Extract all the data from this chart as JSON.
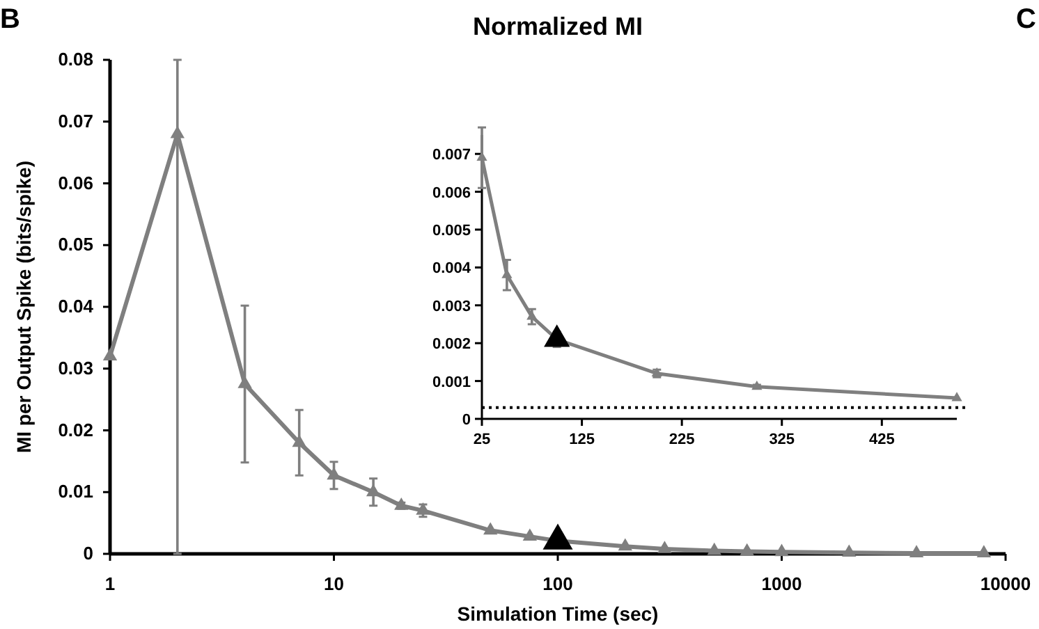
{
  "chart_data": [
    {
      "type": "line",
      "title": "Normalized MI",
      "xlabel": "Simulation Time (sec)",
      "ylabel": "MI per Output Spike (bits/spike)",
      "annotations": [
        "B",
        "C"
      ],
      "x": [
        1,
        2,
        4,
        7,
        10,
        15,
        20,
        25,
        50,
        75,
        100,
        200,
        300,
        500,
        700,
        1000,
        2000,
        4000,
        8000
      ],
      "series": [
        {
          "color": "#7f7f7f",
          "colors": [
            "#7f7f7f",
            "#7f7f7f",
            "#7f7f7f",
            "#7f7f7f",
            "#7f7f7f",
            "#7f7f7f",
            "#7f7f7f",
            "#7f7f7f",
            "#7f7f7f",
            "#7f7f7f",
            "#000000",
            "#7f7f7f",
            "#7f7f7f",
            "#7f7f7f",
            "#7f7f7f",
            "#7f7f7f",
            "#7f7f7f",
            "#7f7f7f",
            "#7f7f7f"
          ],
          "values": [
            0.032,
            0.068,
            0.0275,
            0.018,
            0.0127,
            0.01,
            0.0078,
            0.007,
            0.0038,
            0.0028,
            0.0021,
            0.0012,
            0.0008,
            0.0005,
            0.0004,
            0.0003,
            0.0002,
            0.0001,
            0.0001
          ],
          "errors": [
            null,
            [
              0,
              0.08
            ],
            0.0127,
            0.0053,
            0.0022,
            0.0022,
            0.0005,
            0.001,
            null,
            null,
            null,
            null,
            null,
            null,
            null,
            null,
            null,
            null,
            null
          ]
        }
      ],
      "log": "x",
      "xlim": [
        1,
        10000
      ],
      "xticks": [
        1,
        10,
        100,
        1000,
        10000
      ],
      "ylim": [
        0,
        0.08
      ],
      "yticks": [
        0,
        0.01,
        0.02,
        0.03,
        0.04,
        0.05,
        0.06,
        0.07,
        0.08
      ],
      "marker": "triangle",
      "line_style": "solid"
    },
    {
      "type": "line",
      "x": [
        25,
        50,
        75,
        100,
        200,
        300,
        500
      ],
      "series": [
        {
          "color": "#7f7f7f",
          "colors": [
            "#7f7f7f",
            "#7f7f7f",
            "#7f7f7f",
            "#000000",
            "#7f7f7f",
            "#7f7f7f",
            "#7f7f7f"
          ],
          "values": [
            0.0069,
            0.0038,
            0.0027,
            0.0021,
            0.0012,
            0.00085,
            0.00055
          ],
          "errors": [
            0.0008,
            0.0004,
            0.0002,
            0.0002,
            0.0001,
            5e-05,
            null
          ]
        }
      ],
      "xlim": [
        25,
        500
      ],
      "xticks": [
        25,
        125,
        225,
        325,
        425
      ],
      "ylim": [
        0,
        0.0075
      ],
      "yticks": [
        0,
        0.001,
        0.002,
        0.003,
        0.004,
        0.005,
        0.006,
        0.007
      ],
      "ref_lines": [
        {
          "axis": "y",
          "value": 0.0003,
          "color": "#000000",
          "line_style": "dotted"
        }
      ],
      "marker": "triangle",
      "line_style": "solid"
    }
  ]
}
